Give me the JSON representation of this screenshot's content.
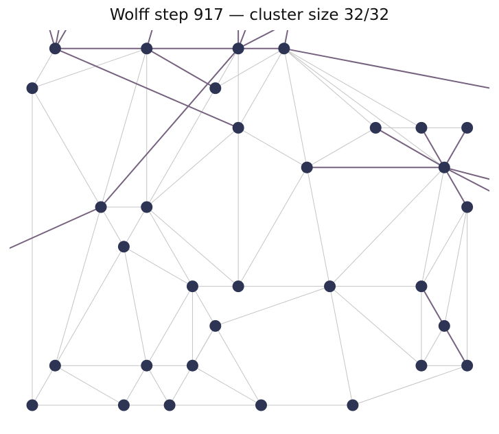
{
  "title": "Wolff step 917 — cluster size 32/32",
  "colors": {
    "node": "#2d3454",
    "edge": "#c4c4c4",
    "cluster_edge": "#76627f",
    "background": "#ffffff"
  },
  "graph": {
    "nodes": [
      {
        "id": 0,
        "x": 1,
        "y": 1
      },
      {
        "id": 1,
        "x": 3,
        "y": 1
      },
      {
        "id": 2,
        "x": 5,
        "y": 1
      },
      {
        "id": 3,
        "x": 6,
        "y": 1
      },
      {
        "id": 4,
        "x": 0.5,
        "y": 2
      },
      {
        "id": 5,
        "x": 4.5,
        "y": 2
      },
      {
        "id": 6,
        "x": 5,
        "y": 3
      },
      {
        "id": 7,
        "x": 8,
        "y": 3
      },
      {
        "id": 8,
        "x": 9,
        "y": 3
      },
      {
        "id": 9,
        "x": 10,
        "y": 3
      },
      {
        "id": 10,
        "x": 6.5,
        "y": 4
      },
      {
        "id": 11,
        "x": 9.5,
        "y": 4
      },
      {
        "id": 12,
        "x": 2,
        "y": 5
      },
      {
        "id": 13,
        "x": 3,
        "y": 5
      },
      {
        "id": 14,
        "x": 10,
        "y": 5
      },
      {
        "id": 15,
        "x": 2.5,
        "y": 6
      },
      {
        "id": 16,
        "x": 4,
        "y": 7
      },
      {
        "id": 17,
        "x": 5,
        "y": 7
      },
      {
        "id": 18,
        "x": 7,
        "y": 7
      },
      {
        "id": 19,
        "x": 9,
        "y": 7
      },
      {
        "id": 20,
        "x": 4.5,
        "y": 8
      },
      {
        "id": 21,
        "x": 9.5,
        "y": 8
      },
      {
        "id": 22,
        "x": 1,
        "y": 9
      },
      {
        "id": 23,
        "x": 3,
        "y": 9
      },
      {
        "id": 24,
        "x": 4,
        "y": 9
      },
      {
        "id": 25,
        "x": 9,
        "y": 9
      },
      {
        "id": 26,
        "x": 10,
        "y": 9
      },
      {
        "id": 27,
        "x": 0.5,
        "y": 10
      },
      {
        "id": 28,
        "x": 2.5,
        "y": 10
      },
      {
        "id": 29,
        "x": 3.5,
        "y": 10
      },
      {
        "id": 30,
        "x": 5.5,
        "y": 10
      },
      {
        "id": 31,
        "x": 7.5,
        "y": 10
      }
    ],
    "edges": [
      [
        0,
        4
      ],
      [
        1,
        4
      ],
      [
        1,
        12
      ],
      [
        1,
        13
      ],
      [
        3,
        5
      ],
      [
        3,
        6
      ],
      [
        3,
        10
      ],
      [
        3,
        7
      ],
      [
        3,
        8
      ],
      [
        3,
        11
      ],
      [
        4,
        12
      ],
      [
        4,
        27
      ],
      [
        5,
        13
      ],
      [
        6,
        10
      ],
      [
        6,
        13
      ],
      [
        2,
        6
      ],
      [
        2,
        5
      ],
      [
        6,
        17
      ],
      [
        7,
        8
      ],
      [
        7,
        10
      ],
      [
        8,
        9
      ],
      [
        9,
        11
      ],
      [
        10,
        17
      ],
      [
        10,
        18
      ],
      [
        11,
        18
      ],
      [
        11,
        19
      ],
      [
        12,
        13
      ],
      [
        12,
        15
      ],
      [
        12,
        22
      ],
      [
        13,
        15
      ],
      [
        13,
        16
      ],
      [
        13,
        17
      ],
      [
        14,
        19
      ],
      [
        14,
        21
      ],
      [
        14,
        26
      ],
      [
        15,
        16
      ],
      [
        15,
        22
      ],
      [
        15,
        23
      ],
      [
        16,
        17
      ],
      [
        16,
        20
      ],
      [
        16,
        23
      ],
      [
        16,
        24
      ],
      [
        17,
        18
      ],
      [
        18,
        19
      ],
      [
        18,
        20
      ],
      [
        18,
        25
      ],
      [
        18,
        31
      ],
      [
        19,
        25
      ],
      [
        20,
        24
      ],
      [
        20,
        29
      ],
      [
        20,
        30
      ],
      [
        21,
        25
      ],
      [
        22,
        23
      ],
      [
        22,
        27
      ],
      [
        22,
        28
      ],
      [
        23,
        24
      ],
      [
        23,
        28
      ],
      [
        23,
        29
      ],
      [
        24,
        30
      ],
      [
        25,
        26
      ],
      [
        26,
        31
      ],
      [
        27,
        28
      ],
      [
        28,
        29
      ],
      [
        29,
        30
      ],
      [
        30,
        31
      ]
    ],
    "cluster_edges": [
      [
        0,
        1
      ],
      [
        1,
        2
      ],
      [
        2,
        3
      ],
      [
        0,
        6
      ],
      [
        1,
        5
      ],
      [
        2,
        12
      ],
      [
        10,
        11
      ],
      [
        7,
        11
      ],
      [
        8,
        11
      ],
      [
        9,
        11
      ],
      [
        11,
        14
      ],
      [
        19,
        21
      ],
      [
        21,
        26
      ]
    ],
    "wrap_edges": [
      [
        0,
        0.7,
        -0.2
      ],
      [
        0,
        1.2,
        -0.2
      ],
      [
        0,
        1.6,
        -0.2
      ],
      [
        1,
        3.3,
        -0.2
      ],
      [
        2,
        5.0,
        -0.2
      ],
      [
        2,
        5.4,
        -0.2
      ],
      [
        3,
        6.2,
        -0.2
      ],
      [
        3,
        10.5,
        2
      ],
      [
        2,
        7,
        -0.2
      ],
      [
        12,
        -0.5,
        6.3
      ],
      [
        11,
        10.5,
        4.3
      ],
      [
        11,
        10.5,
        4.6
      ]
    ]
  }
}
